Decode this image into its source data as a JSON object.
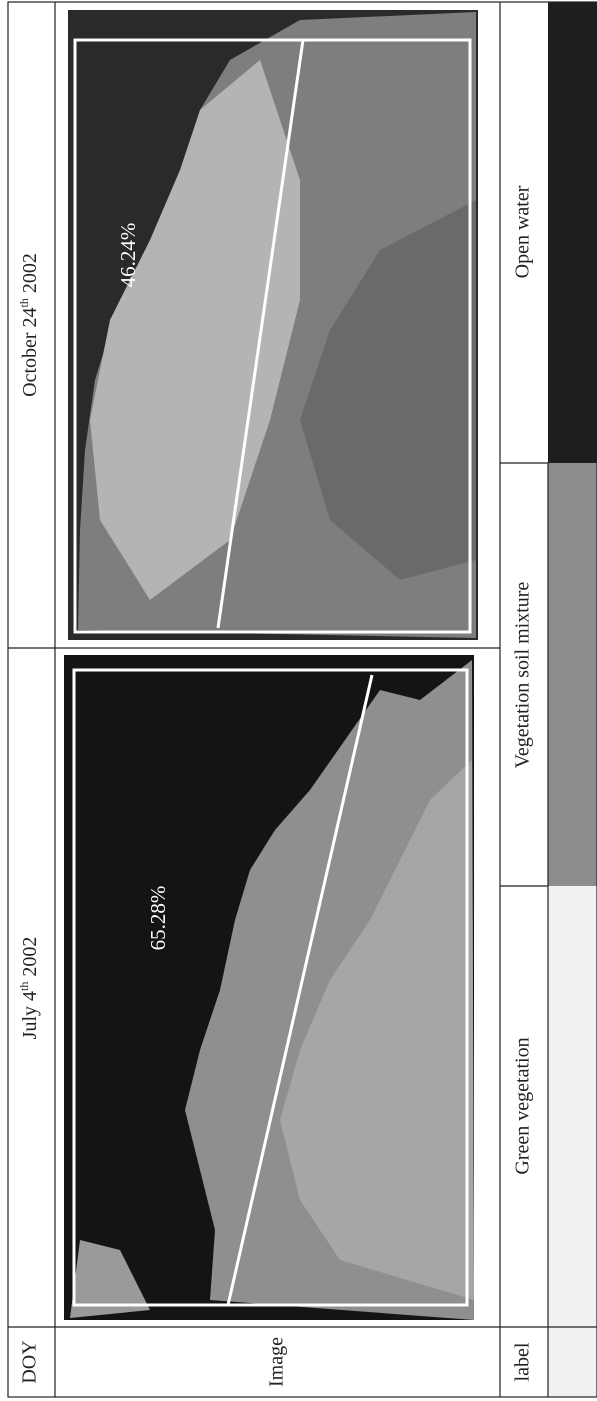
{
  "table": {
    "header": {
      "label": "DOY",
      "dates": [
        {
          "day": "July 4",
          "suffix": "th",
          "year": "2002"
        },
        {
          "day": "October 24",
          "suffix": "th",
          "year": "2002"
        }
      ]
    },
    "image_row": {
      "label": "Image",
      "images": [
        {
          "percent": "65.28%"
        },
        {
          "percent": "46.24%"
        }
      ]
    },
    "label_row": {
      "label": "label",
      "classes": [
        "Green vegetation",
        "Vegetation soil mixture",
        "Open water"
      ]
    }
  }
}
